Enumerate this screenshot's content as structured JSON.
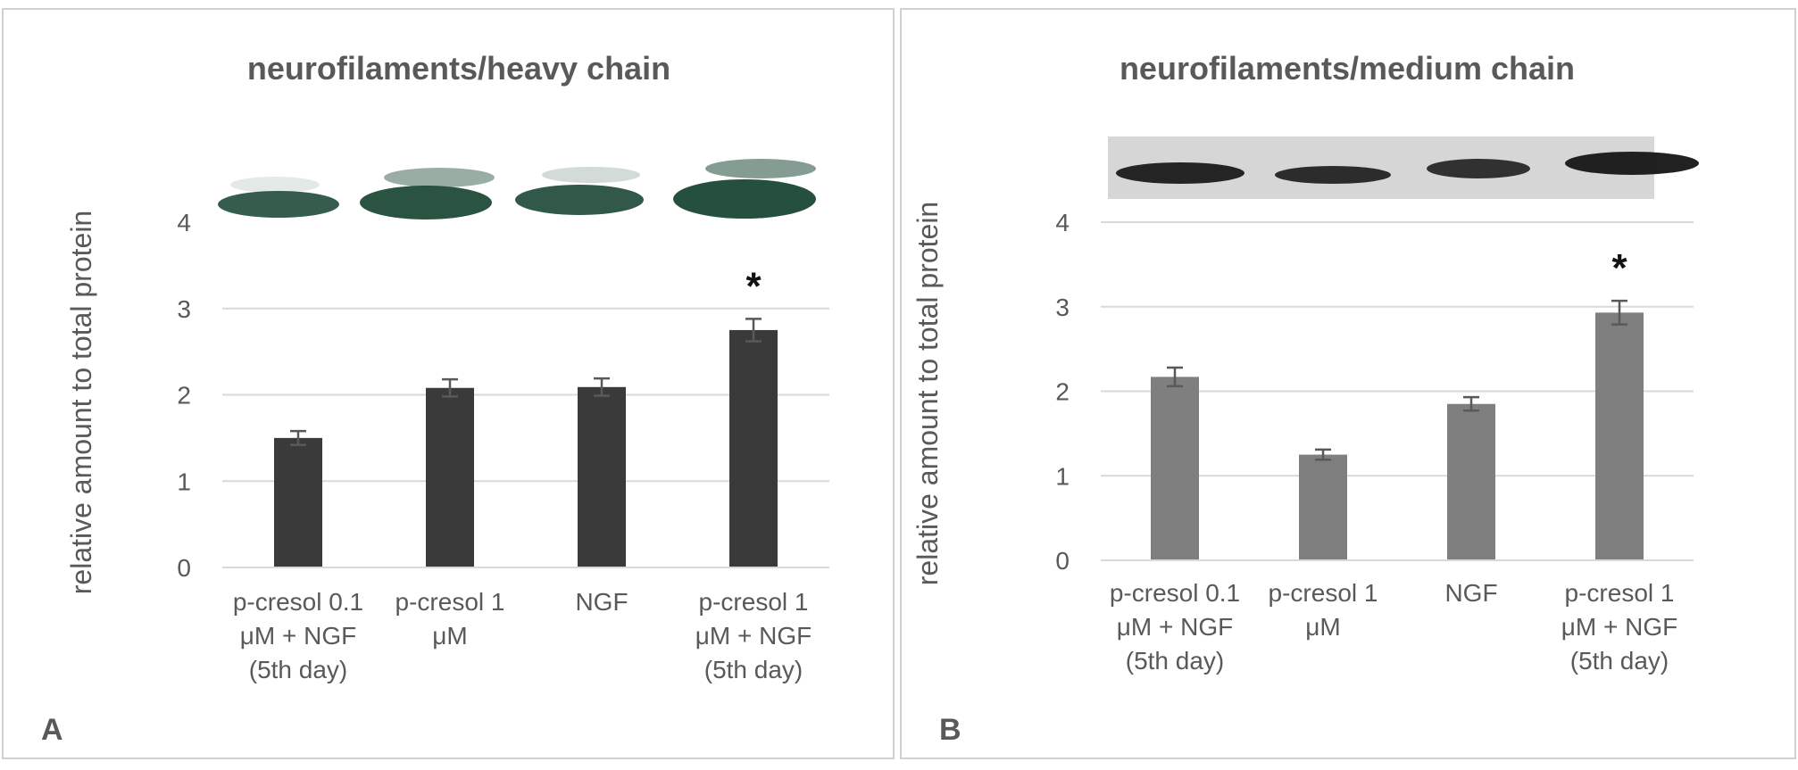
{
  "chart_data": [
    {
      "type": "bar",
      "panel_label": "A",
      "title": "neurofilaments/heavy chain",
      "ylabel": "relative amount to total protein",
      "xlabel": "",
      "categories": [
        [
          "p-cresol  0.1",
          "μM + NGF",
          "(5th day)"
        ],
        [
          "p-cresol  1",
          "μM"
        ],
        [
          "NGF"
        ],
        [
          "p-cresol  1",
          "μM + NGF",
          "(5th day)"
        ]
      ],
      "values": [
        1.5,
        2.08,
        2.09,
        2.75
      ],
      "errors": [
        0.08,
        0.1,
        0.1,
        0.13
      ],
      "significance": [
        "",
        "",
        "",
        "*"
      ],
      "ylim": [
        0,
        4
      ],
      "yticks": [
        "0",
        "1",
        "2",
        "3",
        "4"
      ],
      "grid": true,
      "bar_color": "#3a3a3a",
      "blot_color": "#1f4a38"
    },
    {
      "type": "bar",
      "panel_label": "B",
      "title": "neurofilaments/medium chain",
      "ylabel": "relative amount to total protein",
      "xlabel": "",
      "categories": [
        [
          "p-cresol  0.1",
          "μM + NGF",
          "(5th day)"
        ],
        [
          "p-cresol  1",
          "μM"
        ],
        [
          "NGF"
        ],
        [
          "p-cresol  1",
          "μM + NGF",
          "(5th day)"
        ]
      ],
      "values": [
        2.17,
        1.25,
        1.85,
        2.93
      ],
      "errors": [
        0.11,
        0.06,
        0.08,
        0.14
      ],
      "significance": [
        "",
        "",
        "",
        "*"
      ],
      "ylim": [
        0,
        4
      ],
      "yticks": [
        "0",
        "1",
        "2",
        "3",
        "4"
      ],
      "grid": true,
      "bar_color": "#7f7f7f",
      "blot_color": "#1a1a1a"
    }
  ]
}
